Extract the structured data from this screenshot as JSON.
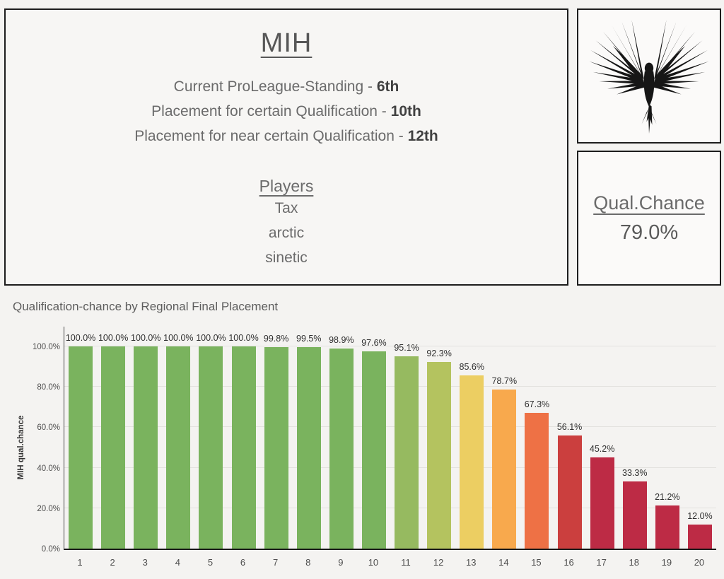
{
  "header": {
    "title": "MIH",
    "lines": [
      {
        "label": "Current ProLeague-Standing - ",
        "value": "6th"
      },
      {
        "label": "Placement for certain Qualification - ",
        "value": "10th"
      },
      {
        "label": "Placement for near certain Qualification - ",
        "value": "12th"
      }
    ],
    "players_heading": "Players",
    "players": [
      "Tax",
      "arctic",
      "sinetic"
    ]
  },
  "logo": {
    "icon": "phoenix-wings-logo"
  },
  "qual_box": {
    "label": "Qual.Chance",
    "value": "79.0%"
  },
  "chart_data": {
    "type": "bar",
    "title": "Qualification-chance by Regional Final Placement",
    "xlabel": "",
    "ylabel": "MIH qual.chance",
    "categories": [
      "1",
      "2",
      "3",
      "4",
      "5",
      "6",
      "7",
      "8",
      "9",
      "10",
      "11",
      "12",
      "13",
      "14",
      "15",
      "16",
      "17",
      "18",
      "19",
      "20"
    ],
    "values": [
      100.0,
      100.0,
      100.0,
      100.0,
      100.0,
      100.0,
      99.8,
      99.5,
      98.9,
      97.6,
      95.1,
      92.3,
      85.6,
      78.7,
      67.3,
      56.1,
      45.2,
      33.3,
      21.2,
      12.0
    ],
    "value_labels": [
      "100.0%",
      "100.0%",
      "100.0%",
      "100.0%",
      "100.0%",
      "100.0%",
      "99.8%",
      "99.5%",
      "98.9%",
      "97.6%",
      "95.1%",
      "92.3%",
      "85.6%",
      "78.7%",
      "67.3%",
      "56.1%",
      "45.2%",
      "33.3%",
      "21.2%",
      "12.0%"
    ],
    "bar_colors": [
      "#7ab35e",
      "#7ab35e",
      "#7ab35e",
      "#7ab35e",
      "#7ab35e",
      "#7ab35e",
      "#7ab35e",
      "#7ab35e",
      "#7ab35e",
      "#7ab35e",
      "#96ba60",
      "#b4c35f",
      "#ecce62",
      "#f8a94d",
      "#ee7145",
      "#cb3f3e",
      "#bd2b45",
      "#bd2b45",
      "#bd2b45",
      "#bd2b45"
    ],
    "ylim": [
      0,
      100
    ],
    "yticks": [
      {
        "label": "0.0%",
        "value": 0
      },
      {
        "label": "20.0%",
        "value": 20
      },
      {
        "label": "40.0%",
        "value": 40
      },
      {
        "label": "60.0%",
        "value": 60
      },
      {
        "label": "80.0%",
        "value": 80
      },
      {
        "label": "100.0%",
        "value": 100
      }
    ],
    "grid": true,
    "legend": false
  },
  "colors": {
    "background": "#f4f3f1",
    "box_border": "#1d1d1d",
    "grid": "#e2e1de",
    "axis": "#1a1a1a",
    "text": "#5f5f5f"
  }
}
